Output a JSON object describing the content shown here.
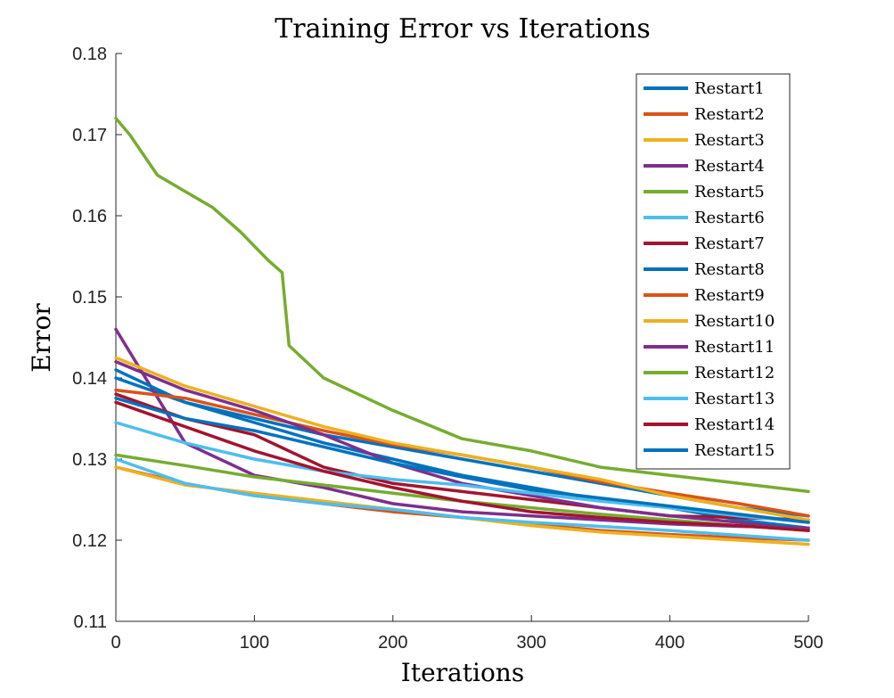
{
  "chart_data": {
    "type": "line",
    "title": "Training Error vs Iterations",
    "xlabel": "Iterations",
    "ylabel": "Error",
    "xlim": [
      0,
      500
    ],
    "ylim": [
      0.11,
      0.18
    ],
    "xticks": [
      "0",
      "100",
      "200",
      "300",
      "400",
      "500"
    ],
    "yticks": [
      "0.11",
      "0.12",
      "0.13",
      "0.14",
      "0.15",
      "0.16",
      "0.17",
      "0.18"
    ],
    "grid": false,
    "legend_position": "top-right",
    "series": [
      {
        "name": "Restart1",
        "color": "#0072BD",
        "x": [
          0,
          50,
          100,
          150,
          200,
          250,
          300,
          350,
          400,
          450,
          500
        ],
        "y": [
          0.14,
          0.137,
          0.1345,
          0.132,
          0.13,
          0.128,
          0.1265,
          0.125,
          0.124,
          0.1225,
          0.1215
        ]
      },
      {
        "name": "Restart2",
        "color": "#D95319",
        "x": [
          0,
          50,
          100,
          150,
          200,
          250,
          300,
          350,
          400,
          450,
          500
        ],
        "y": [
          0.129,
          0.127,
          0.1255,
          0.1245,
          0.1235,
          0.1228,
          0.122,
          0.1212,
          0.1207,
          0.1203,
          0.12
        ]
      },
      {
        "name": "Restart3",
        "color": "#EDB120",
        "x": [
          0,
          50,
          100,
          150,
          200,
          250,
          300,
          350,
          400,
          450,
          500
        ],
        "y": [
          0.129,
          0.1268,
          0.1258,
          0.1248,
          0.1238,
          0.1228,
          0.1218,
          0.121,
          0.1205,
          0.12,
          0.1195
        ]
      },
      {
        "name": "Restart4",
        "color": "#7E2F8E",
        "x": [
          0,
          50,
          100,
          150,
          200,
          250,
          300,
          350,
          400,
          450,
          500
        ],
        "y": [
          0.146,
          0.132,
          0.128,
          0.1265,
          0.1245,
          0.1235,
          0.123,
          0.1225,
          0.122,
          0.1217,
          0.1215
        ]
      },
      {
        "name": "Restart5",
        "color": "#77AC30",
        "x": [
          0,
          10,
          30,
          50,
          70,
          90,
          110,
          120,
          125,
          150,
          175,
          200,
          250,
          300,
          350,
          400,
          450,
          500
        ],
        "y": [
          0.172,
          0.17,
          0.165,
          0.163,
          0.161,
          0.158,
          0.1545,
          0.153,
          0.144,
          0.14,
          0.138,
          0.136,
          0.1325,
          0.131,
          0.129,
          0.128,
          0.127,
          0.126
        ]
      },
      {
        "name": "Restart6",
        "color": "#4DBEEE",
        "x": [
          0,
          50,
          100,
          150,
          200,
          250,
          300,
          350,
          400,
          450,
          500
        ],
        "y": [
          0.13,
          0.127,
          0.1255,
          0.1245,
          0.1238,
          0.1228,
          0.1222,
          0.1217,
          0.1212,
          0.1206,
          0.12
        ]
      },
      {
        "name": "Restart7",
        "color": "#A2142F",
        "x": [
          0,
          50,
          100,
          150,
          200,
          250,
          300,
          350,
          400,
          450,
          500
        ],
        "y": [
          0.138,
          0.135,
          0.133,
          0.129,
          0.127,
          0.126,
          0.125,
          0.124,
          0.123,
          0.1228,
          0.1225
        ]
      },
      {
        "name": "Restart8",
        "color": "#0072BD",
        "x": [
          0,
          50,
          100,
          150,
          200,
          250,
          300,
          350,
          400,
          450,
          500
        ],
        "y": [
          0.141,
          0.137,
          0.135,
          0.133,
          0.1315,
          0.13,
          0.1285,
          0.127,
          0.1255,
          0.124,
          0.123
        ]
      },
      {
        "name": "Restart9",
        "color": "#D95319",
        "x": [
          0,
          50,
          100,
          150,
          200,
          250,
          300,
          350,
          400,
          450,
          500
        ],
        "y": [
          0.1385,
          0.1375,
          0.1355,
          0.1335,
          0.1318,
          0.1305,
          0.129,
          0.1272,
          0.1258,
          0.1245,
          0.123
        ]
      },
      {
        "name": "Restart10",
        "color": "#EDB120",
        "x": [
          0,
          50,
          100,
          150,
          200,
          250,
          300,
          350,
          400,
          450,
          500
        ],
        "y": [
          0.1425,
          0.139,
          0.1365,
          0.134,
          0.132,
          0.1305,
          0.129,
          0.1275,
          0.1255,
          0.124,
          0.1225
        ]
      },
      {
        "name": "Restart11",
        "color": "#7E2F8E",
        "x": [
          0,
          50,
          100,
          150,
          200,
          250,
          300,
          350,
          400,
          450,
          500
        ],
        "y": [
          0.142,
          0.1385,
          0.136,
          0.133,
          0.1295,
          0.127,
          0.1255,
          0.124,
          0.123,
          0.1222,
          0.1212
        ]
      },
      {
        "name": "Restart12",
        "color": "#77AC30",
        "x": [
          0,
          50,
          100,
          150,
          200,
          250,
          300,
          350,
          400,
          450,
          500
        ],
        "y": [
          0.1305,
          0.1292,
          0.1278,
          0.1268,
          0.1258,
          0.1248,
          0.124,
          0.1232,
          0.1225,
          0.1218,
          0.1212
        ]
      },
      {
        "name": "Restart13",
        "color": "#4DBEEE",
        "x": [
          0,
          50,
          100,
          150,
          200,
          250,
          300,
          350,
          400,
          450,
          500
        ],
        "y": [
          0.1345,
          0.132,
          0.13,
          0.1285,
          0.1275,
          0.1268,
          0.1258,
          0.1248,
          0.124,
          0.123,
          0.1222
        ]
      },
      {
        "name": "Restart14",
        "color": "#A2142F",
        "x": [
          0,
          50,
          100,
          150,
          200,
          250,
          300,
          350,
          400,
          450,
          500
        ],
        "y": [
          0.137,
          0.134,
          0.131,
          0.1285,
          0.1265,
          0.1248,
          0.1235,
          0.1228,
          0.1222,
          0.1218,
          0.1212
        ]
      },
      {
        "name": "Restart15",
        "color": "#0072BD",
        "x": [
          0,
          50,
          100,
          150,
          200,
          250,
          300,
          350,
          400,
          450,
          500
        ],
        "y": [
          0.1375,
          0.135,
          0.1335,
          0.1315,
          0.1295,
          0.1278,
          0.1262,
          0.1252,
          0.1242,
          0.1232,
          0.1222
        ]
      }
    ]
  }
}
